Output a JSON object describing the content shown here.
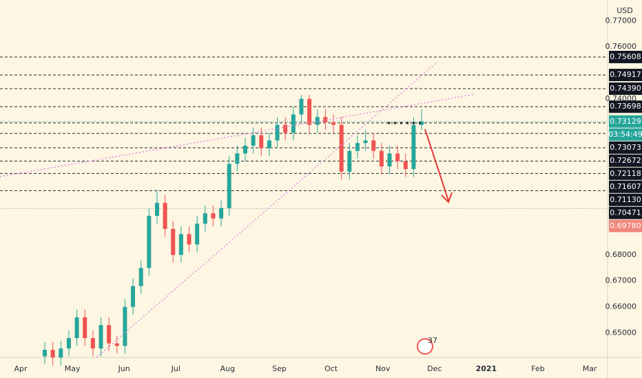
{
  "chart_data": {
    "type": "candlestick",
    "currency": "USD",
    "ylim": [
      0.6406,
      0.778
    ],
    "yticks": [
      {
        "value": 0.77,
        "label": "0.77000"
      },
      {
        "value": 0.76,
        "label": "0.76000"
      },
      {
        "value": 0.74,
        "label": "0.74000"
      },
      {
        "value": 0.68,
        "label": "0.68000"
      },
      {
        "value": 0.67,
        "label": "0.67000"
      },
      {
        "value": 0.66,
        "label": "0.66000"
      },
      {
        "value": 0.65,
        "label": "0.65000"
      }
    ],
    "categories": [
      "Apr",
      "May",
      "Jun",
      "Jul",
      "Aug",
      "Sep",
      "Oct",
      "Nov",
      "Dec",
      "2021",
      "Feb",
      "Mar"
    ],
    "up_color": "#26a69a",
    "down_color": "#ef5350",
    "open": [
      0.641,
      0.6435,
      0.6405,
      0.644,
      0.648,
      0.656,
      0.648,
      0.644,
      0.653,
      0.646,
      0.645,
      0.66,
      0.668,
      0.675,
      0.695,
      0.7,
      0.69,
      0.68,
      0.688,
      0.684,
      0.692,
      0.696,
      0.694,
      0.698,
      0.715,
      0.719,
      0.722,
      0.726,
      0.721,
      0.724,
      0.73,
      0.727,
      0.734,
      0.74,
      0.73,
      0.733,
      0.731,
      0.73,
      0.712,
      0.72,
      0.723,
      0.724,
      0.72,
      0.714,
      0.719,
      0.716,
      0.713,
      0.73
    ],
    "high": [
      0.6465,
      0.6465,
      0.647,
      0.651,
      0.659,
      0.659,
      0.651,
      0.656,
      0.656,
      0.649,
      0.663,
      0.671,
      0.678,
      0.698,
      0.705,
      0.703,
      0.693,
      0.691,
      0.691,
      0.695,
      0.699,
      0.699,
      0.701,
      0.718,
      0.722,
      0.725,
      0.729,
      0.729,
      0.727,
      0.733,
      0.733,
      0.737,
      0.7415,
      0.7415,
      0.736,
      0.736,
      0.734,
      0.733,
      0.723,
      0.726,
      0.728,
      0.727,
      0.723,
      0.722,
      0.722,
      0.719,
      0.733,
      0.736
    ],
    "low": [
      0.638,
      0.6375,
      0.6375,
      0.641,
      0.645,
      0.645,
      0.641,
      0.641,
      0.643,
      0.642,
      0.642,
      0.657,
      0.665,
      0.672,
      0.692,
      0.687,
      0.677,
      0.677,
      0.681,
      0.681,
      0.689,
      0.691,
      0.691,
      0.695,
      0.712,
      0.716,
      0.719,
      0.718,
      0.718,
      0.721,
      0.724,
      0.724,
      0.731,
      0.727,
      0.727,
      0.728,
      0.727,
      0.709,
      0.709,
      0.717,
      0.72,
      0.717,
      0.711,
      0.711,
      0.713,
      0.71,
      0.71,
      0.728
    ],
    "close": [
      0.6435,
      0.6405,
      0.644,
      0.648,
      0.656,
      0.648,
      0.644,
      0.653,
      0.646,
      0.645,
      0.66,
      0.668,
      0.675,
      0.695,
      0.7,
      0.69,
      0.68,
      0.688,
      0.684,
      0.692,
      0.696,
      0.694,
      0.698,
      0.715,
      0.719,
      0.722,
      0.726,
      0.721,
      0.724,
      0.73,
      0.727,
      0.734,
      0.74,
      0.73,
      0.733,
      0.731,
      0.73,
      0.712,
      0.72,
      0.723,
      0.724,
      0.72,
      0.714,
      0.719,
      0.716,
      0.713,
      0.73,
      0.7313
    ],
    "levels": [
      0.75608,
      0.74917,
      0.7439,
      0.73698,
      0.73073,
      0.72672,
      0.72118,
      0.71607,
      0.7113,
      0.70471
    ],
    "level_labels": [
      "0.75608",
      "0.74917",
      "0.74390",
      "0.73698",
      "0.73073",
      "0.72672",
      "0.72118",
      "0.71607",
      "0.71130",
      "0.70471"
    ],
    "current_price": {
      "value": 0.73129,
      "label": "0.73129",
      "countdown": "03:54:49",
      "color": "#26a69a"
    },
    "alert": {
      "value": 0.6978,
      "label": "0.69780",
      "color": "#f0857b"
    },
    "badge": "37"
  }
}
